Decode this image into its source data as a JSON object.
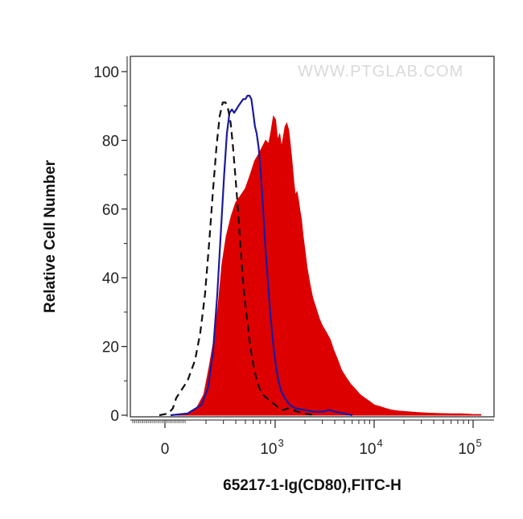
{
  "chart_data": {
    "type": "area",
    "title": "",
    "xlabel": "65217-1-Ig(CD80),FITC-H",
    "ylabel": "Relative Cell Number",
    "watermark": "WWW.PTGLAB.COM",
    "x_scale": "biexponential (log above ~10^2)",
    "ylim": [
      0,
      100
    ],
    "y_ticks": [
      0,
      20,
      40,
      60,
      80,
      100
    ],
    "x_ticks": [
      {
        "value": 0,
        "label": "0",
        "exp": ""
      },
      {
        "value": 1000,
        "label": "10",
        "exp": "3"
      },
      {
        "value": 10000,
        "label": "10",
        "exp": "4"
      },
      {
        "value": 100000,
        "label": "10",
        "exp": "5"
      }
    ],
    "grid": false,
    "series": [
      {
        "style": "filled",
        "color": "#dd0000",
        "points": [
          [
            80,
            0
          ],
          [
            130,
            0.5
          ],
          [
            160,
            2
          ],
          [
            190,
            6
          ],
          [
            215,
            14
          ],
          [
            240,
            22
          ],
          [
            265,
            32
          ],
          [
            290,
            44
          ],
          [
            320,
            52
          ],
          [
            360,
            58
          ],
          [
            400,
            62
          ],
          [
            450,
            64
          ],
          [
            500,
            66
          ],
          [
            560,
            70
          ],
          [
            620,
            74
          ],
          [
            680,
            76
          ],
          [
            740,
            78
          ],
          [
            800,
            80
          ],
          [
            860,
            79
          ],
          [
            900,
            82
          ],
          [
            960,
            87
          ],
          [
            1010,
            86
          ],
          [
            1060,
            80
          ],
          [
            1110,
            82
          ],
          [
            1160,
            78
          ],
          [
            1210,
            81
          ],
          [
            1260,
            84
          ],
          [
            1310,
            85
          ],
          [
            1370,
            83
          ],
          [
            1420,
            79
          ],
          [
            1480,
            74
          ],
          [
            1540,
            68
          ],
          [
            1600,
            64
          ],
          [
            1660,
            65
          ],
          [
            1710,
            63
          ],
          [
            1770,
            60
          ],
          [
            1840,
            57
          ],
          [
            1920,
            52
          ],
          [
            2000,
            48
          ],
          [
            2100,
            43
          ],
          [
            2250,
            38
          ],
          [
            2400,
            34
          ],
          [
            2600,
            31
          ],
          [
            2800,
            28
          ],
          [
            3000,
            26
          ],
          [
            3300,
            24
          ],
          [
            3600,
            22
          ],
          [
            3900,
            19
          ],
          [
            4300,
            16
          ],
          [
            4700,
            13
          ],
          [
            5200,
            11
          ],
          [
            5800,
            9
          ],
          [
            6500,
            7.5
          ],
          [
            7200,
            6
          ],
          [
            8000,
            5
          ],
          [
            9000,
            4
          ],
          [
            10000,
            3
          ],
          [
            11500,
            2.5
          ],
          [
            13000,
            2
          ],
          [
            15000,
            1.5
          ],
          [
            18000,
            1.2
          ],
          [
            22000,
            1
          ],
          [
            27000,
            0.8
          ],
          [
            35000,
            0.6
          ],
          [
            45000,
            0.5
          ],
          [
            60000,
            0.4
          ],
          [
            75000,
            0.4
          ],
          [
            90000,
            0.3
          ],
          [
            100000,
            0.2
          ],
          [
            110000,
            0.2
          ],
          [
            120000,
            0.2
          ]
        ]
      },
      {
        "style": "solid",
        "color": "#1a1aa0",
        "points": [
          [
            50,
            0
          ],
          [
            130,
            0.5
          ],
          [
            180,
            3
          ],
          [
            210,
            8
          ],
          [
            235,
            18
          ],
          [
            260,
            35
          ],
          [
            285,
            55
          ],
          [
            305,
            70
          ],
          [
            325,
            82
          ],
          [
            345,
            88
          ],
          [
            365,
            89
          ],
          [
            385,
            88
          ],
          [
            405,
            89
          ],
          [
            425,
            90
          ],
          [
            450,
            91
          ],
          [
            475,
            92
          ],
          [
            500,
            92
          ],
          [
            525,
            93
          ],
          [
            550,
            93
          ],
          [
            575,
            92
          ],
          [
            600,
            88
          ],
          [
            625,
            84
          ],
          [
            650,
            82
          ],
          [
            680,
            78
          ],
          [
            710,
            72
          ],
          [
            740,
            64
          ],
          [
            770,
            56
          ],
          [
            800,
            48
          ],
          [
            830,
            42
          ],
          [
            860,
            36
          ],
          [
            890,
            30
          ],
          [
            930,
            24
          ],
          [
            970,
            19
          ],
          [
            1020,
            14
          ],
          [
            1080,
            10
          ],
          [
            1150,
            7
          ],
          [
            1250,
            5
          ],
          [
            1400,
            3
          ],
          [
            1600,
            2
          ],
          [
            2000,
            1.5
          ],
          [
            2500,
            1
          ],
          [
            3000,
            1
          ],
          [
            3500,
            1.5
          ],
          [
            4000,
            1
          ],
          [
            5000,
            0.5
          ],
          [
            6000,
            0
          ]
        ]
      },
      {
        "style": "dashed",
        "color": "#111111",
        "points": [
          [
            -50,
            0
          ],
          [
            30,
            0.5
          ],
          [
            70,
            2
          ],
          [
            100,
            5
          ],
          [
            130,
            10
          ],
          [
            155,
            16
          ],
          [
            175,
            24
          ],
          [
            195,
            35
          ],
          [
            215,
            50
          ],
          [
            235,
            65
          ],
          [
            255,
            78
          ],
          [
            275,
            87
          ],
          [
            295,
            91
          ],
          [
            315,
            91
          ],
          [
            335,
            89
          ],
          [
            355,
            85
          ],
          [
            375,
            78
          ],
          [
            395,
            70
          ],
          [
            420,
            60
          ],
          [
            445,
            50
          ],
          [
            470,
            40
          ],
          [
            500,
            32
          ],
          [
            530,
            26
          ],
          [
            560,
            20
          ],
          [
            600,
            15
          ],
          [
            640,
            11
          ],
          [
            690,
            8
          ],
          [
            750,
            6
          ],
          [
            820,
            5
          ],
          [
            900,
            4
          ],
          [
            1000,
            3
          ],
          [
            1100,
            2
          ],
          [
            1200,
            1.5
          ],
          [
            1350,
            2
          ],
          [
            1500,
            1.5
          ],
          [
            1700,
            1
          ],
          [
            2000,
            0.5
          ],
          [
            2500,
            0
          ]
        ]
      }
    ]
  }
}
